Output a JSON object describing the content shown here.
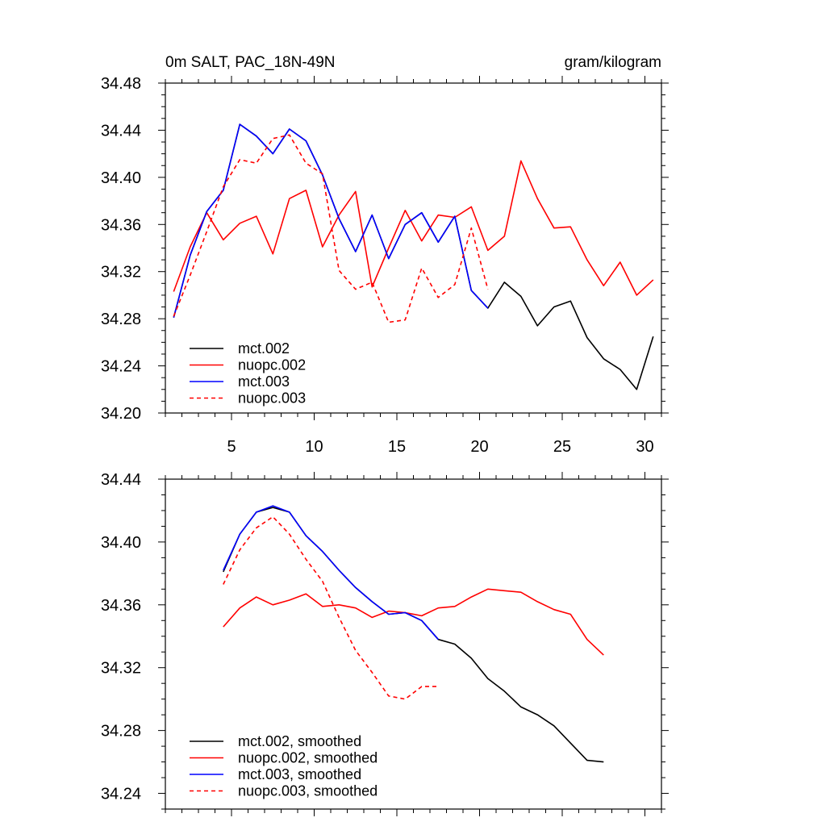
{
  "chart_data": [
    {
      "type": "line",
      "title": "0m SALT, PAC_18N-49N",
      "units": "gram/kilogram",
      "xlabel": "",
      "ylabel": "",
      "xlim": [
        1,
        31
      ],
      "ylim": [
        34.2,
        34.48
      ],
      "xticks": [
        5,
        10,
        15,
        20,
        25,
        30
      ],
      "yticks": [
        34.2,
        34.24,
        34.28,
        34.32,
        34.36,
        34.4,
        34.44,
        34.48
      ],
      "ytick_labels": [
        "34.20",
        "34.24",
        "34.28",
        "34.32",
        "34.36",
        "34.40",
        "34.44",
        "34.48"
      ],
      "legend_position": "bottom-left",
      "series": [
        {
          "name": "mct.002",
          "color": "#000000",
          "dash": false,
          "x": [
            1.5,
            2.5,
            3.5,
            4.5,
            5.5,
            6.5,
            7.5,
            8.5,
            9.5,
            10.5,
            11.5,
            12.5,
            13.5,
            14.5,
            15.5,
            16.5,
            17.5,
            18.5,
            19.5,
            20.5,
            21.5,
            22.5,
            23.5,
            24.5,
            25.5,
            26.5,
            27.5,
            28.5,
            29.5,
            30.5
          ],
          "y": [
            34.281,
            34.334,
            34.371,
            34.389,
            34.445,
            34.435,
            34.42,
            34.441,
            34.431,
            34.402,
            34.365,
            34.337,
            34.368,
            34.331,
            34.36,
            34.37,
            34.345,
            34.367,
            34.304,
            34.289,
            34.311,
            34.299,
            34.274,
            34.29,
            34.295,
            34.264,
            34.246,
            34.237,
            34.22,
            34.265
          ]
        },
        {
          "name": "nuopc.002",
          "color": "#ff0000",
          "dash": false,
          "x": [
            1.5,
            2.5,
            3.5,
            4.5,
            5.5,
            6.5,
            7.5,
            8.5,
            9.5,
            10.5,
            11.5,
            12.5,
            13.5,
            14.5,
            15.5,
            16.5,
            17.5,
            18.5,
            19.5,
            20.5,
            21.5,
            22.5,
            23.5,
            24.5,
            25.5,
            26.5,
            27.5,
            28.5,
            29.5,
            30.5
          ],
          "y": [
            34.303,
            34.341,
            34.37,
            34.347,
            34.361,
            34.367,
            34.335,
            34.382,
            34.389,
            34.341,
            34.368,
            34.388,
            34.307,
            34.34,
            34.372,
            34.346,
            34.368,
            34.366,
            34.375,
            34.338,
            34.35,
            34.414,
            34.382,
            34.357,
            34.358,
            34.33,
            34.308,
            34.328,
            34.3,
            34.313
          ]
        },
        {
          "name": "mct.003",
          "color": "#0000ff",
          "dash": false,
          "x": [
            1.5,
            2.5,
            3.5,
            4.5,
            5.5,
            6.5,
            7.5,
            8.5,
            9.5,
            10.5,
            11.5,
            12.5,
            13.5,
            14.5,
            15.5,
            16.5,
            17.5,
            18.5,
            19.5,
            20.5
          ],
          "y": [
            34.281,
            34.334,
            34.371,
            34.389,
            34.445,
            34.435,
            34.42,
            34.441,
            34.431,
            34.402,
            34.365,
            34.337,
            34.368,
            34.331,
            34.36,
            34.37,
            34.345,
            34.367,
            34.304,
            34.289
          ]
        },
        {
          "name": "nuopc.003",
          "color": "#ff0000",
          "dash": true,
          "x": [
            1.5,
            2.5,
            3.5,
            4.5,
            5.5,
            6.5,
            7.5,
            8.5,
            9.5,
            10.5,
            11.5,
            12.5,
            13.5,
            14.5,
            15.5,
            16.5,
            17.5,
            18.5,
            19.5,
            20.5
          ],
          "y": [
            34.282,
            34.317,
            34.354,
            34.392,
            34.415,
            34.412,
            34.433,
            34.436,
            34.412,
            34.403,
            34.321,
            34.305,
            34.311,
            34.277,
            34.279,
            34.323,
            34.298,
            34.309,
            34.357,
            34.305
          ]
        }
      ]
    },
    {
      "type": "line",
      "title": "",
      "xlabel": "",
      "ylabel": "",
      "xlim": [
        1,
        31
      ],
      "ylim": [
        34.23,
        34.44
      ],
      "xticks": [
        5,
        10,
        15,
        20,
        25,
        30
      ],
      "yticks": [
        34.24,
        34.28,
        34.32,
        34.36,
        34.4,
        34.44
      ],
      "ytick_labels": [
        "34.24",
        "34.28",
        "34.32",
        "34.36",
        "34.40",
        "34.44"
      ],
      "legend_position": "bottom-left",
      "series": [
        {
          "name": "mct.002, smoothed",
          "color": "#000000",
          "dash": false,
          "x": [
            4.5,
            5.5,
            6.5,
            7.5,
            8.5,
            9.5,
            10.5,
            11.5,
            12.5,
            13.5,
            14.5,
            15.5,
            16.5,
            17.5,
            18.5,
            19.5,
            20.5,
            21.5,
            22.5,
            23.5,
            24.5,
            25.5,
            26.5,
            27.5
          ],
          "y": [
            34.381,
            34.405,
            34.419,
            34.422,
            34.419,
            34.404,
            34.394,
            34.382,
            34.371,
            34.362,
            34.354,
            34.355,
            34.35,
            34.338,
            34.335,
            34.326,
            34.313,
            34.305,
            34.295,
            34.29,
            34.283,
            34.272,
            34.261,
            34.26
          ]
        },
        {
          "name": "nuopc.002, smoothed",
          "color": "#ff0000",
          "dash": false,
          "x": [
            4.5,
            5.5,
            6.5,
            7.5,
            8.5,
            9.5,
            10.5,
            11.5,
            12.5,
            13.5,
            14.5,
            15.5,
            16.5,
            17.5,
            18.5,
            19.5,
            20.5,
            21.5,
            22.5,
            23.5,
            24.5,
            25.5,
            26.5,
            27.5
          ],
          "y": [
            34.346,
            34.358,
            34.365,
            34.36,
            34.363,
            34.367,
            34.359,
            34.36,
            34.358,
            34.352,
            34.356,
            34.355,
            34.353,
            34.358,
            34.359,
            34.365,
            34.37,
            34.369,
            34.368,
            34.362,
            34.357,
            34.354,
            34.338,
            34.328
          ]
        },
        {
          "name": "mct.003, smoothed",
          "color": "#0000ff",
          "dash": false,
          "x": [
            4.5,
            5.5,
            6.5,
            7.5,
            8.5,
            9.5,
            10.5,
            11.5,
            12.5,
            13.5,
            14.5,
            15.5,
            16.5,
            17.5
          ],
          "y": [
            34.382,
            34.405,
            34.419,
            34.423,
            34.419,
            34.404,
            34.394,
            34.382,
            34.371,
            34.362,
            34.354,
            34.355,
            34.35,
            34.338
          ]
        },
        {
          "name": "nuopc.003, smoothed",
          "color": "#ff0000",
          "dash": true,
          "x": [
            4.5,
            5.5,
            6.5,
            7.5,
            8.5,
            9.5,
            10.5,
            11.5,
            12.5,
            13.5,
            14.5,
            15.5,
            16.5,
            17.5
          ],
          "y": [
            34.373,
            34.395,
            34.409,
            34.416,
            34.405,
            34.389,
            34.375,
            34.352,
            34.331,
            34.317,
            34.302,
            34.3,
            34.308,
            34.308
          ]
        }
      ]
    }
  ]
}
